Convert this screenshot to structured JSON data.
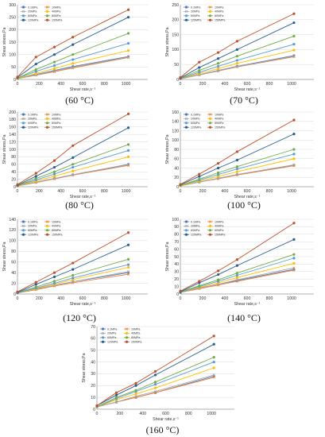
{
  "series_colors": {
    "0.1MPa": "#4a78c4",
    "10MPa": "#ed7d31",
    "20MPa": "#a5a5a5",
    "40MPa": "#ffc000",
    "60MPa": "#5b9bd5",
    "80MPa": "#70ad47",
    "120MPa": "#255e91",
    "150MPa": "#c0502a"
  },
  "chart_data": [
    {
      "type": "line",
      "title": "(60 °C)",
      "xlabel": "Shear rate,s⁻¹",
      "ylabel": "Shear stress,Pa",
      "xlim": [
        0,
        1200
      ],
      "ylim": [
        0,
        300
      ],
      "xticks": [
        0,
        200,
        400,
        600,
        800,
        1000
      ],
      "yticks": [
        0,
        50,
        100,
        150,
        200,
        250,
        300
      ],
      "x": [
        0,
        170,
        340,
        510,
        1021
      ],
      "series": [
        {
          "name": "0.1MPa",
          "values": [
            3,
            20,
            36,
            52,
            92
          ]
        },
        {
          "name": "10MPa",
          "values": [
            3,
            17,
            31,
            46,
            88
          ]
        },
        {
          "name": "20MPa",
          "values": [
            3,
            18,
            34,
            49,
            90
          ]
        },
        {
          "name": "40MPa",
          "values": [
            4,
            24,
            44,
            64,
            116
          ]
        },
        {
          "name": "60MPa",
          "values": [
            5,
            32,
            56,
            80,
            145
          ]
        },
        {
          "name": "80MPa",
          "values": [
            5,
            40,
            70,
            100,
            185
          ]
        },
        {
          "name": "120MPa",
          "values": [
            8,
            62,
            100,
            140,
            250
          ]
        },
        {
          "name": "150MPa",
          "values": [
            10,
            90,
            130,
            170,
            280
          ]
        }
      ]
    },
    {
      "type": "line",
      "title": "(70 °C)",
      "xlabel": "Shear rate,s⁻¹",
      "ylabel": "Shear stress,Pa",
      "xlim": [
        0,
        1200
      ],
      "ylim": [
        0,
        250
      ],
      "xticks": [
        0,
        200,
        400,
        600,
        800,
        1000
      ],
      "yticks": [
        0,
        50,
        100,
        150,
        200,
        250
      ],
      "x": [
        0,
        170,
        340,
        510,
        1021
      ],
      "series": [
        {
          "name": "0.1MPa",
          "values": [
            2,
            16,
            30,
            44,
            80
          ]
        },
        {
          "name": "10MPa",
          "values": [
            2,
            15,
            28,
            42,
            76
          ]
        },
        {
          "name": "20MPa",
          "values": [
            2,
            16,
            29,
            43,
            78
          ]
        },
        {
          "name": "40MPa",
          "values": [
            3,
            20,
            36,
            54,
            98
          ]
        },
        {
          "name": "60MPa",
          "values": [
            3,
            24,
            44,
            64,
            118
          ]
        },
        {
          "name": "80MPa",
          "values": [
            4,
            30,
            54,
            78,
            145
          ]
        },
        {
          "name": "120MPa",
          "values": [
            5,
            40,
            70,
            100,
            190
          ]
        },
        {
          "name": "150MPa",
          "values": [
            7,
            58,
            90,
            128,
            220
          ]
        }
      ]
    },
    {
      "type": "line",
      "title": "(80 °C)",
      "xlabel": "Shear rate,s⁻¹",
      "ylabel": "Shear stress,Pa",
      "xlim": [
        0,
        1200
      ],
      "ylim": [
        0,
        200
      ],
      "xticks": [
        0,
        200,
        400,
        600,
        800,
        1000
      ],
      "yticks": [
        0,
        20,
        40,
        60,
        80,
        100,
        120,
        140,
        160,
        180,
        200
      ],
      "x": [
        0,
        170,
        340,
        510,
        1021
      ],
      "series": [
        {
          "name": "0.1MPa",
          "values": [
            2,
            12,
            22,
            32,
            60
          ]
        },
        {
          "name": "10MPa",
          "values": [
            2,
            11,
            21,
            31,
            57
          ]
        },
        {
          "name": "20MPa",
          "values": [
            2,
            12,
            22,
            32,
            59
          ]
        },
        {
          "name": "40MPa",
          "values": [
            2,
            15,
            28,
            42,
            80
          ]
        },
        {
          "name": "60MPa",
          "values": [
            3,
            18,
            34,
            52,
            97
          ]
        },
        {
          "name": "80MPa",
          "values": [
            3,
            22,
            40,
            60,
            113
          ]
        },
        {
          "name": "120MPa",
          "values": [
            4,
            28,
            52,
            78,
            158
          ]
        },
        {
          "name": "150MPa",
          "values": [
            6,
            36,
            70,
            110,
            195
          ]
        }
      ]
    },
    {
      "type": "line",
      "title": "(100 °C)",
      "xlabel": "Shear rate,s⁻¹",
      "ylabel": "Shear stress,Pa",
      "xlim": [
        0,
        1200
      ],
      "ylim": [
        0,
        160
      ],
      "xticks": [
        0,
        200,
        400,
        600,
        800,
        1000
      ],
      "yticks": [
        0,
        20,
        40,
        60,
        80,
        100,
        120,
        140,
        160
      ],
      "x": [
        0,
        170,
        340,
        510,
        1021
      ],
      "series": [
        {
          "name": "0.1MPa",
          "values": [
            2,
            10,
            18,
            26,
            46
          ]
        },
        {
          "name": "10MPa",
          "values": [
            2,
            10,
            17,
            25,
            45
          ]
        },
        {
          "name": "20MPa",
          "values": [
            2,
            10,
            18,
            26,
            47
          ]
        },
        {
          "name": "40MPa",
          "values": [
            2,
            12,
            22,
            32,
            60
          ]
        },
        {
          "name": "60MPa",
          "values": [
            3,
            14,
            26,
            38,
            70
          ]
        },
        {
          "name": "80MPa",
          "values": [
            3,
            16,
            30,
            43,
            80
          ]
        },
        {
          "name": "120MPa",
          "values": [
            4,
            22,
            40,
            57,
            113
          ]
        },
        {
          "name": "150MPa",
          "values": [
            5,
            27,
            50,
            75,
            143
          ]
        }
      ]
    },
    {
      "type": "line",
      "title": "(120 °C)",
      "xlabel": "Shear rate,s⁻¹",
      "ylabel": "Shear stress,Pa",
      "xlim": [
        0,
        1200
      ],
      "ylim": [
        0,
        140
      ],
      "xticks": [
        0,
        200,
        400,
        600,
        800,
        1000
      ],
      "yticks": [
        0,
        20,
        40,
        60,
        80,
        100,
        120,
        140
      ],
      "x": [
        0,
        170,
        340,
        510,
        1021
      ],
      "series": [
        {
          "name": "0.1MPa",
          "values": [
            2,
            9,
            16,
            23,
            40
          ]
        },
        {
          "name": "10MPa",
          "values": [
            2,
            8,
            15,
            21,
            37
          ]
        },
        {
          "name": "20MPa",
          "values": [
            2,
            9,
            16,
            23,
            42
          ]
        },
        {
          "name": "40MPa",
          "values": [
            2,
            10,
            18,
            27,
            50
          ]
        },
        {
          "name": "60MPa",
          "values": [
            2,
            11,
            20,
            30,
            55
          ]
        },
        {
          "name": "80MPa",
          "values": [
            3,
            13,
            24,
            35,
            65
          ]
        },
        {
          "name": "120MPa",
          "values": [
            3,
            18,
            32,
            46,
            92
          ]
        },
        {
          "name": "150MPa",
          "values": [
            4,
            22,
            40,
            58,
            115
          ]
        }
      ]
    },
    {
      "type": "line",
      "title": "(140 °C)",
      "xlabel": "Shear rate,s⁻¹",
      "ylabel": "Shear stress,Pa",
      "xlim": [
        0,
        1200
      ],
      "ylim": [
        0,
        100
      ],
      "xticks": [
        0,
        200,
        400,
        600,
        800,
        1000
      ],
      "yticks": [
        0,
        10,
        20,
        30,
        40,
        50,
        60,
        70,
        80,
        90,
        100
      ],
      "x": [
        0,
        170,
        340,
        510,
        1021
      ],
      "series": [
        {
          "name": "0.1MPa",
          "values": [
            2,
            8,
            13,
            18,
            33
          ]
        },
        {
          "name": "10MPa",
          "values": [
            2,
            7,
            12,
            17,
            32
          ]
        },
        {
          "name": "20MPa",
          "values": [
            2,
            8,
            13,
            19,
            35
          ]
        },
        {
          "name": "40MPa",
          "values": [
            2,
            9,
            15,
            22,
            41
          ]
        },
        {
          "name": "60MPa",
          "values": [
            2,
            10,
            17,
            25,
            48
          ]
        },
        {
          "name": "80MPa",
          "values": [
            3,
            11,
            19,
            28,
            53
          ]
        },
        {
          "name": "120MPa",
          "values": [
            3,
            15,
            26,
            38,
            73
          ]
        },
        {
          "name": "150MPa",
          "values": [
            4,
            17,
            31,
            46,
            95
          ]
        }
      ]
    },
    {
      "type": "line",
      "title": "(160 °C)",
      "xlabel": "Shear rate,s⁻¹",
      "ylabel": "Shear stress,Pa",
      "xlim": [
        0,
        1200
      ],
      "ylim": [
        0,
        70
      ],
      "xticks": [
        0,
        200,
        400,
        600,
        800,
        1000
      ],
      "yticks": [
        0,
        10,
        20,
        30,
        40,
        50,
        60,
        70
      ],
      "x": [
        0,
        170,
        340,
        510,
        1021
      ],
      "series": [
        {
          "name": "0.1MPa",
          "values": [
            2,
            6,
            10,
            14,
            28
          ]
        },
        {
          "name": "10MPa",
          "values": [
            2,
            6,
            10,
            14,
            27
          ]
        },
        {
          "name": "20MPa",
          "values": [
            2,
            6,
            11,
            15,
            29
          ]
        },
        {
          "name": "40MPa",
          "values": [
            2,
            8,
            13,
            18,
            35
          ]
        },
        {
          "name": "60MPa",
          "values": [
            2,
            9,
            15,
            21,
            40
          ]
        },
        {
          "name": "80MPa",
          "values": [
            2,
            10,
            16,
            23,
            44
          ]
        },
        {
          "name": "120MPa",
          "values": [
            3,
            12,
            20,
            29,
            55
          ]
        },
        {
          "name": "150MPa",
          "values": [
            3,
            14,
            22,
            32,
            62
          ]
        }
      ]
    }
  ]
}
